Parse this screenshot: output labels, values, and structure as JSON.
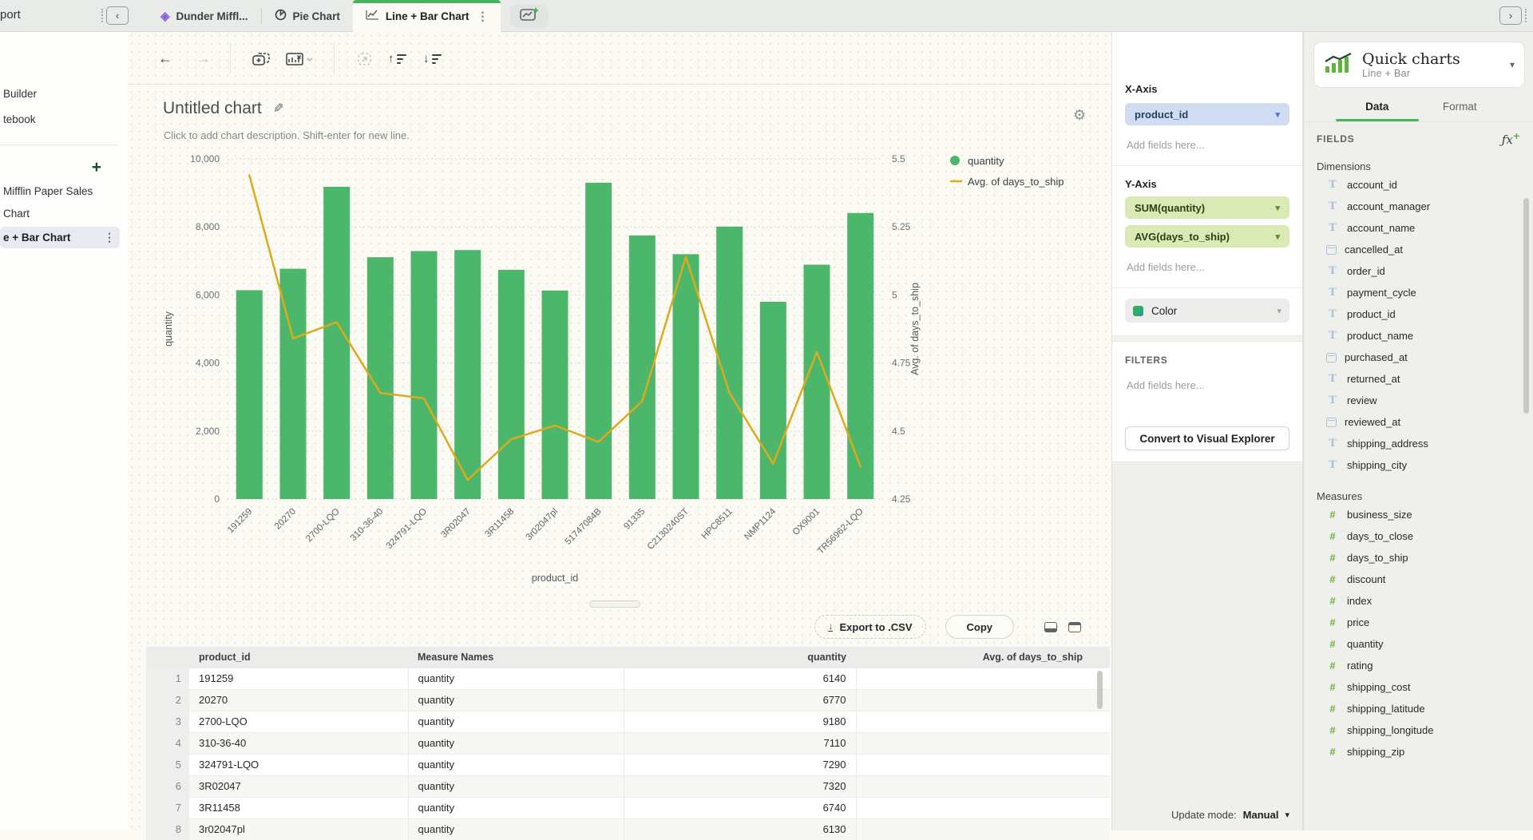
{
  "top_bar": {
    "window_title": "port",
    "tabs": [
      {
        "label": "Dunder Miffl...",
        "icon": "project-icon",
        "active": false
      },
      {
        "label": "Pie Chart",
        "icon": "pie-chart-icon",
        "active": false
      },
      {
        "label": "Line + Bar Chart",
        "icon": "line-chart-icon",
        "active": true
      }
    ]
  },
  "sidebar": {
    "items": [
      {
        "label": "Builder"
      },
      {
        "label": "tebook"
      }
    ],
    "pages": [
      {
        "label": "Mifflin Paper Sales",
        "active": false
      },
      {
        "label": "Chart",
        "active": false
      },
      {
        "label": "e + Bar Chart",
        "active": true
      }
    ]
  },
  "chart": {
    "title": "Untitled chart",
    "description_placeholder": "Click to add chart description. Shift-enter for new line."
  },
  "chart_data": {
    "type": "bar",
    "title": "Untitled chart",
    "categories": [
      "191259",
      "20270",
      "2700-LQO",
      "310-36-40",
      "324791-LQO",
      "3R02047",
      "3R11458",
      "3r02047pl",
      "51747084B",
      "91335",
      "C2130240ST",
      "HPC8511",
      "NMP1124",
      "OX9001",
      "TR56962-LQO"
    ],
    "series": [
      {
        "name": "quantity",
        "type": "bar",
        "axis": "left",
        "color": "#4cb76a",
        "values": [
          6140,
          6770,
          9180,
          7110,
          7290,
          7320,
          6740,
          6130,
          9300,
          7750,
          7200,
          8010,
          5800,
          6890,
          8410
        ]
      },
      {
        "name": "Avg. of days_to_ship",
        "type": "line",
        "axis": "right",
        "color": "#dcaa1c",
        "values": [
          5.44,
          4.84,
          4.9,
          4.64,
          4.62,
          4.32,
          4.47,
          4.52,
          4.46,
          4.61,
          5.14,
          4.64,
          4.38,
          4.79,
          4.37
        ]
      }
    ],
    "xlabel": "product_id",
    "left_axis": {
      "label": "quantity",
      "range": [
        0,
        10000
      ],
      "ticks": [
        0,
        2000,
        4000,
        6000,
        8000,
        10000
      ]
    },
    "right_axis": {
      "label": "Avg. of days_to_ship",
      "range": [
        4.25,
        5.5
      ],
      "ticks": [
        4.25,
        4.5,
        4.75,
        5,
        5.25,
        5.5
      ]
    },
    "grid": true,
    "legend_position": "top-right"
  },
  "results_table": {
    "export_label": "Export to .CSV",
    "copy_label": "Copy",
    "columns": [
      "product_id",
      "Measure Names",
      "quantity",
      "Avg. of days_to_ship"
    ],
    "rows": [
      {
        "num": "1",
        "product_id": "191259",
        "measure": "quantity",
        "quantity": "6140",
        "avg": ""
      },
      {
        "num": "2",
        "product_id": "20270",
        "measure": "quantity",
        "quantity": "6770",
        "avg": ""
      },
      {
        "num": "3",
        "product_id": "2700-LQO",
        "measure": "quantity",
        "quantity": "9180",
        "avg": ""
      },
      {
        "num": "4",
        "product_id": "310-36-40",
        "measure": "quantity",
        "quantity": "7110",
        "avg": ""
      },
      {
        "num": "5",
        "product_id": "324791-LQO",
        "measure": "quantity",
        "quantity": "7290",
        "avg": ""
      },
      {
        "num": "6",
        "product_id": "3R02047",
        "measure": "quantity",
        "quantity": "7320",
        "avg": ""
      },
      {
        "num": "7",
        "product_id": "3R11458",
        "measure": "quantity",
        "quantity": "6740",
        "avg": ""
      },
      {
        "num": "8",
        "product_id": "3r02047pl",
        "measure": "quantity",
        "quantity": "6130",
        "avg": ""
      }
    ]
  },
  "config": {
    "x_axis": {
      "title": "X-Axis",
      "field": "product_id",
      "placeholder": "Add fields here..."
    },
    "y_axis": {
      "title": "Y-Axis",
      "fields": [
        "SUM(quantity)",
        "AVG(days_to_ship)"
      ],
      "placeholder": "Add fields here..."
    },
    "color_label": "Color",
    "filters": {
      "title": "FILTERS",
      "placeholder": "Add fields here..."
    },
    "convert_label": "Convert to Visual Explorer",
    "update_mode": {
      "label": "Update mode:",
      "value": "Manual"
    }
  },
  "fields_panel": {
    "header": {
      "title": "Quick charts",
      "subtitle": "Line + Bar"
    },
    "tabs": [
      {
        "label": "Data",
        "active": true
      },
      {
        "label": "Format",
        "active": false
      }
    ],
    "fields_title": "FIELDS",
    "dimensions": {
      "title": "Dimensions",
      "items": [
        {
          "name": "account_id",
          "icon": "text-icon"
        },
        {
          "name": "account_manager",
          "icon": "text-icon"
        },
        {
          "name": "account_name",
          "icon": "text-icon"
        },
        {
          "name": "cancelled_at",
          "icon": "calendar-icon"
        },
        {
          "name": "order_id",
          "icon": "text-icon"
        },
        {
          "name": "payment_cycle",
          "icon": "text-icon"
        },
        {
          "name": "product_id",
          "icon": "text-icon"
        },
        {
          "name": "product_name",
          "icon": "text-icon"
        },
        {
          "name": "purchased_at",
          "icon": "calendar-icon"
        },
        {
          "name": "returned_at",
          "icon": "text-icon"
        },
        {
          "name": "review",
          "icon": "text-icon"
        },
        {
          "name": "reviewed_at",
          "icon": "calendar-icon"
        },
        {
          "name": "shipping_address",
          "icon": "text-icon"
        },
        {
          "name": "shipping_city",
          "icon": "text-icon"
        }
      ]
    },
    "measures": {
      "title": "Measures",
      "items": [
        {
          "name": "business_size",
          "icon": "number-icon"
        },
        {
          "name": "days_to_close",
          "icon": "number-icon"
        },
        {
          "name": "days_to_ship",
          "icon": "number-icon"
        },
        {
          "name": "discount",
          "icon": "number-icon"
        },
        {
          "name": "index",
          "icon": "number-icon"
        },
        {
          "name": "price",
          "icon": "number-icon"
        },
        {
          "name": "quantity",
          "icon": "number-icon"
        },
        {
          "name": "rating",
          "icon": "number-icon"
        },
        {
          "name": "shipping_cost",
          "icon": "number-icon"
        },
        {
          "name": "shipping_latitude",
          "icon": "number-icon"
        },
        {
          "name": "shipping_longitude",
          "icon": "number-icon"
        },
        {
          "name": "shipping_zip",
          "icon": "number-icon"
        }
      ]
    }
  }
}
